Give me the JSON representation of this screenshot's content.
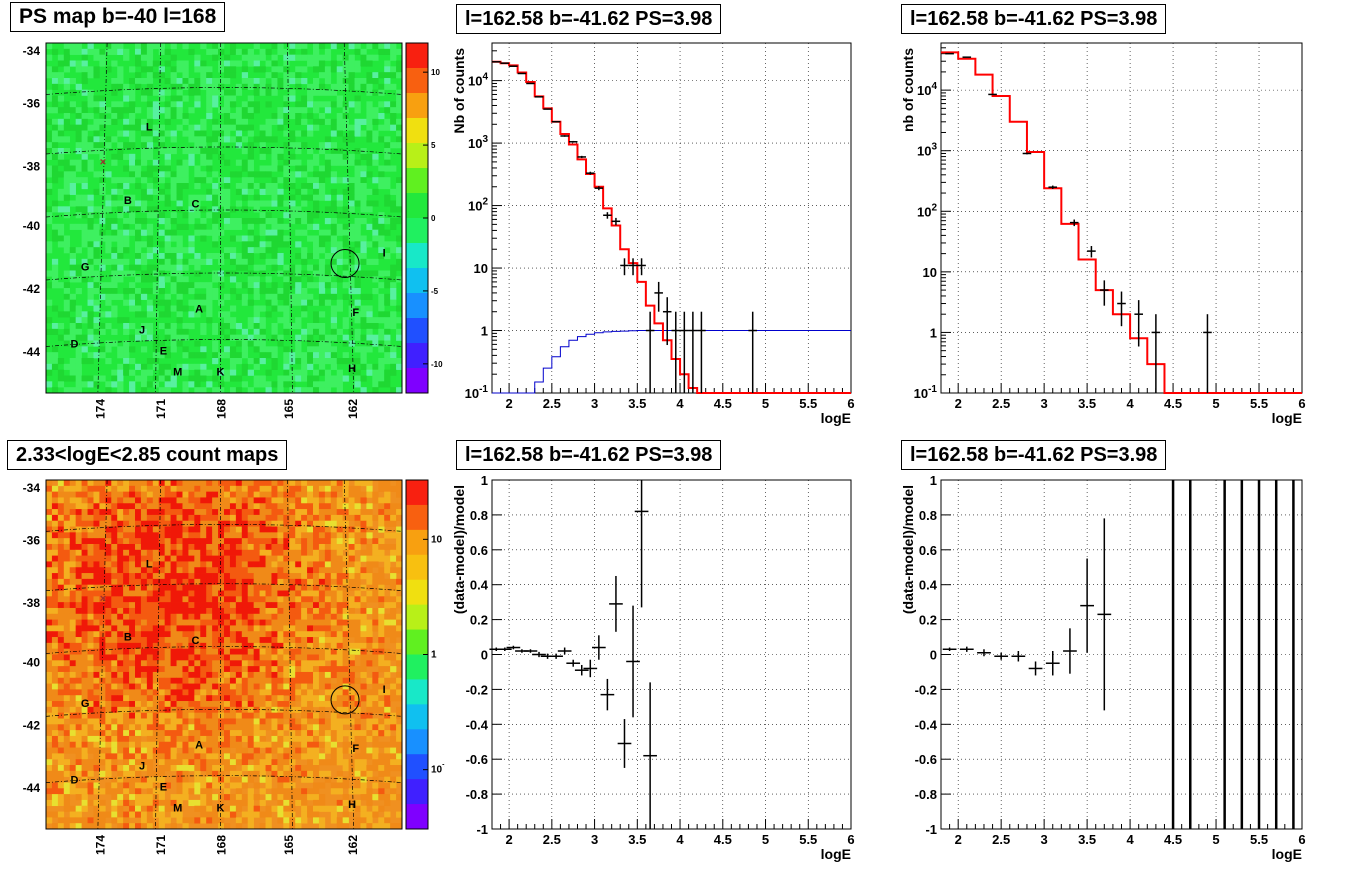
{
  "panels": {
    "map_ps": {
      "title": "PS map b=-40 l=168"
    },
    "spec1": {
      "title": "l=162.58 b=-41.62 PS=3.98"
    },
    "spec2": {
      "title": "l=162.58 b=-41.62 PS=3.98"
    },
    "map_count": {
      "title": "2.33<logE<2.85 count maps"
    },
    "res1": {
      "title": "l=162.58 b=-41.62 PS=3.98"
    },
    "res2": {
      "title": "l=162.58 b=-41.62 PS=3.98"
    }
  },
  "colors": {
    "data": "#000000",
    "model": "#ff0000",
    "exposure": "#0000cc",
    "grid": "#000000"
  },
  "chart_data": [
    {
      "id": "map_ps",
      "type": "heatmap",
      "title": "PS map b=-40 l=168",
      "y_ticks": [
        "-34",
        "-36",
        "-38",
        "-40",
        "-42",
        "-44"
      ],
      "x_ticks": [
        "174",
        "171",
        "168",
        "165",
        "162"
      ],
      "colorbar_ticks": [
        "10",
        "5",
        "0",
        "-5",
        "-10"
      ],
      "colorbar_range": [
        -12,
        12
      ],
      "source_labels": [
        "L",
        "B",
        "C",
        "G",
        "I",
        "A",
        "F",
        "J",
        "D",
        "E",
        "M",
        "K",
        "H"
      ],
      "marker": "×",
      "dominant_color": "#22e83c"
    },
    {
      "id": "spec1",
      "type": "line",
      "title": "l=162.58 b=-41.62 PS=3.98",
      "xlabel": "logE",
      "ylabel": "Nb of counts",
      "xlim": [
        1.8,
        6.0
      ],
      "ylim": [
        0.1,
        40000
      ],
      "log_y": true,
      "grid": true,
      "x_ticks": [
        "2",
        "2.5",
        "3",
        "3.5",
        "4",
        "4.5",
        "5",
        "5.5",
        "6"
      ],
      "y_ticks": [
        "10^-1",
        "1",
        "10",
        "10^2",
        "10^3",
        "10^4"
      ],
      "data_points": [
        [
          1.85,
          20000
        ],
        [
          1.95,
          19000
        ],
        [
          2.05,
          17000
        ],
        [
          2.15,
          13000
        ],
        [
          2.25,
          9000
        ],
        [
          2.35,
          5500
        ],
        [
          2.45,
          3500
        ],
        [
          2.55,
          2200
        ],
        [
          2.65,
          1300
        ],
        [
          2.75,
          1050
        ],
        [
          2.85,
          600
        ],
        [
          2.95,
          330
        ],
        [
          3.05,
          190
        ],
        [
          3.15,
          70
        ],
        [
          3.25,
          56
        ],
        [
          3.35,
          11
        ],
        [
          3.45,
          11
        ],
        [
          3.55,
          11
        ],
        [
          3.65,
          1
        ],
        [
          3.75,
          4
        ],
        [
          3.85,
          2
        ],
        [
          3.95,
          1
        ],
        [
          4.05,
          1
        ],
        [
          4.15,
          1
        ],
        [
          4.25,
          1
        ],
        [
          4.85,
          1
        ]
      ],
      "model_step": [
        [
          1.8,
          20000
        ],
        [
          1.9,
          19000
        ],
        [
          2.0,
          17500
        ],
        [
          2.1,
          13500
        ],
        [
          2.2,
          9500
        ],
        [
          2.3,
          5600
        ],
        [
          2.4,
          3600
        ],
        [
          2.5,
          2200
        ],
        [
          2.6,
          1400
        ],
        [
          2.7,
          950
        ],
        [
          2.8,
          550
        ],
        [
          2.9,
          320
        ],
        [
          3.0,
          200
        ],
        [
          3.1,
          90
        ],
        [
          3.2,
          48
        ],
        [
          3.3,
          20
        ],
        [
          3.4,
          12
        ],
        [
          3.5,
          6
        ],
        [
          3.6,
          2.5
        ],
        [
          3.7,
          1.3
        ],
        [
          3.8,
          0.7
        ],
        [
          3.9,
          0.35
        ],
        [
          4.0,
          0.2
        ],
        [
          4.1,
          0.12
        ],
        [
          4.2,
          0.1
        ]
      ],
      "exposure_step": [
        [
          1.8,
          0.1
        ],
        [
          2.2,
          0.1
        ],
        [
          2.3,
          0.15
        ],
        [
          2.4,
          0.25
        ],
        [
          2.5,
          0.38
        ],
        [
          2.6,
          0.55
        ],
        [
          2.7,
          0.7
        ],
        [
          2.8,
          0.8
        ],
        [
          2.9,
          0.87
        ],
        [
          3.0,
          0.92
        ],
        [
          3.1,
          0.95
        ],
        [
          3.2,
          0.97
        ],
        [
          3.3,
          0.98
        ],
        [
          3.4,
          0.99
        ],
        [
          3.5,
          1.0
        ]
      ]
    },
    {
      "id": "spec2",
      "type": "line",
      "title": "l=162.58 b=-41.62 PS=3.98",
      "xlabel": "logE",
      "ylabel": "nb of counts",
      "xlim": [
        1.8,
        6.0
      ],
      "ylim": [
        0.1,
        60000
      ],
      "log_y": true,
      "grid": true,
      "x_ticks": [
        "2",
        "2.5",
        "3",
        "3.5",
        "4",
        "4.5",
        "5",
        "5.5",
        "6"
      ],
      "y_ticks": [
        "10^-1",
        "1",
        "10",
        "10^2",
        "10^3",
        "10^4"
      ],
      "data_points": [
        [
          1.9,
          40000
        ],
        [
          2.1,
          35000
        ],
        [
          2.4,
          8500
        ],
        [
          2.8,
          900
        ],
        [
          3.1,
          250
        ],
        [
          3.35,
          65
        ],
        [
          3.55,
          22
        ],
        [
          3.7,
          5
        ],
        [
          3.9,
          3
        ],
        [
          4.1,
          2
        ],
        [
          4.3,
          1
        ],
        [
          4.9,
          1
        ]
      ],
      "model_step": [
        [
          1.8,
          42000
        ],
        [
          2.0,
          33000
        ],
        [
          2.2,
          18000
        ],
        [
          2.4,
          8000
        ],
        [
          2.6,
          3000
        ],
        [
          2.8,
          950
        ],
        [
          3.0,
          240
        ],
        [
          3.2,
          62
        ],
        [
          3.4,
          16
        ],
        [
          3.6,
          5
        ],
        [
          3.8,
          2
        ],
        [
          4.0,
          0.8
        ],
        [
          4.2,
          0.3
        ],
        [
          4.4,
          0.1
        ]
      ]
    },
    {
      "id": "map_count",
      "type": "heatmap",
      "title": "2.33<logE<2.85 count maps",
      "y_ticks": [
        "-34",
        "-36",
        "-38",
        "-40",
        "-42",
        "-44"
      ],
      "x_ticks": [
        "174",
        "171",
        "168",
        "165",
        "162"
      ],
      "colorbar_ticks": [
        "10",
        "1",
        "10^-1"
      ],
      "colorbar_log": true,
      "source_labels": [
        "L",
        "B",
        "C",
        "G",
        "I",
        "A",
        "F",
        "J",
        "D",
        "E",
        "M",
        "K",
        "H"
      ],
      "marker": "×",
      "dominant_color": "#f09020"
    },
    {
      "id": "res1",
      "type": "scatter",
      "title": "l=162.58 b=-41.62 PS=3.98",
      "xlabel": "logE",
      "ylabel": "(data-model)/model",
      "xlim": [
        1.8,
        6.0
      ],
      "ylim": [
        -1,
        1
      ],
      "grid": true,
      "x_ticks": [
        "2",
        "2.5",
        "3",
        "3.5",
        "4",
        "4.5",
        "5",
        "5.5",
        "6"
      ],
      "y_ticks": [
        "1",
        "0.8",
        "0.6",
        "0.4",
        "0.2",
        "0",
        "-0.2",
        "-0.4",
        "-0.6",
        "-0.8",
        "-1"
      ],
      "points": [
        [
          1.85,
          0.03,
          0.01
        ],
        [
          1.95,
          0.03,
          0.01
        ],
        [
          2.05,
          0.04,
          0.01
        ],
        [
          2.15,
          0.02,
          0.01
        ],
        [
          2.25,
          0.02,
          0.01
        ],
        [
          2.35,
          0.0,
          0.015
        ],
        [
          2.45,
          -0.01,
          0.015
        ],
        [
          2.55,
          -0.01,
          0.015
        ],
        [
          2.65,
          0.02,
          0.02
        ],
        [
          2.75,
          -0.05,
          0.02
        ],
        [
          2.85,
          -0.09,
          0.03
        ],
        [
          2.95,
          -0.08,
          0.05
        ],
        [
          3.05,
          0.04,
          0.07
        ],
        [
          3.15,
          -0.23,
          0.09
        ],
        [
          3.25,
          0.29,
          0.16
        ],
        [
          3.35,
          -0.51,
          0.14
        ],
        [
          3.45,
          -0.04,
          0.32
        ],
        [
          3.55,
          0.82,
          0.55
        ],
        [
          3.65,
          -0.58,
          0.42
        ]
      ]
    },
    {
      "id": "res2",
      "type": "scatter",
      "title": "l=162.58 b=-41.62 PS=3.98",
      "xlabel": "logE",
      "ylabel": "(data-model)/model",
      "xlim": [
        1.8,
        6.0
      ],
      "ylim": [
        -1,
        1
      ],
      "grid": true,
      "x_ticks": [
        "2",
        "2.5",
        "3",
        "3.5",
        "4",
        "4.5",
        "5",
        "5.5",
        "6"
      ],
      "y_ticks": [
        "1",
        "0.8",
        "0.6",
        "0.4",
        "0.2",
        "0",
        "-0.2",
        "-0.4",
        "-0.6",
        "-0.8",
        "-1"
      ],
      "points": [
        [
          1.9,
          0.03,
          0.01
        ],
        [
          2.1,
          0.03,
          0.015
        ],
        [
          2.3,
          0.01,
          0.02
        ],
        [
          2.5,
          -0.01,
          0.02
        ],
        [
          2.7,
          -0.01,
          0.03
        ],
        [
          2.9,
          -0.08,
          0.04
        ],
        [
          3.1,
          -0.05,
          0.07
        ],
        [
          3.3,
          0.02,
          0.13
        ],
        [
          3.5,
          0.28,
          0.27
        ],
        [
          3.7,
          0.23,
          0.55
        ]
      ],
      "vertical_lines_x": [
        4.5,
        4.7,
        5.1,
        5.3,
        5.5,
        5.7,
        5.9
      ]
    }
  ]
}
